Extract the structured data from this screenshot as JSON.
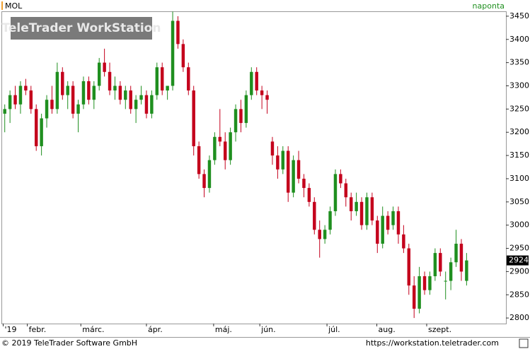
{
  "header": {
    "symbol": "MOL",
    "interval": "naponta"
  },
  "chart_data": {
    "type": "candlestick",
    "watermark": "TeleTrader WorkStation",
    "up_color": "#1f8f1f",
    "down_color": "#c4001c",
    "xlim": [
      -0.5,
      95.5
    ],
    "xticks": [
      {
        "value": -0.3,
        "label": "'19"
      },
      {
        "value": 4.3,
        "label": "febr."
      },
      {
        "value": 14.5,
        "label": "márc."
      },
      {
        "value": 27,
        "label": "ápr."
      },
      {
        "value": 39.8,
        "label": "máj."
      },
      {
        "value": 48.6,
        "label": "jún."
      },
      {
        "value": 61.4,
        "label": "júl."
      },
      {
        "value": 70.9,
        "label": "aug."
      },
      {
        "value": 80.4,
        "label": "szept."
      }
    ],
    "ylim": [
      2788,
      3459
    ],
    "yticks": [
      2800,
      2850,
      2900,
      2950,
      3000,
      3050,
      3100,
      3150,
      3200,
      3250,
      3300,
      3350,
      3400,
      3450
    ],
    "candles": [
      [
        3240,
        3260,
        3200,
        3250
      ],
      [
        3250,
        3290,
        3220,
        3280
      ],
      [
        3280,
        3300,
        3250,
        3260
      ],
      [
        3260,
        3310,
        3240,
        3300
      ],
      [
        3300,
        3315,
        3280,
        3290
      ],
      [
        3290,
        3300,
        3240,
        3250
      ],
      [
        3250,
        3260,
        3160,
        3170
      ],
      [
        3170,
        3240,
        3150,
        3230
      ],
      [
        3230,
        3280,
        3210,
        3270
      ],
      [
        3270,
        3300,
        3240,
        3250
      ],
      [
        3250,
        3350,
        3240,
        3330
      ],
      [
        3330,
        3340,
        3270,
        3280
      ],
      [
        3280,
        3310,
        3250,
        3300
      ],
      [
        3300,
        3310,
        3230,
        3240
      ],
      [
        3240,
        3270,
        3200,
        3260
      ],
      [
        3260,
        3320,
        3250,
        3310
      ],
      [
        3310,
        3320,
        3260,
        3270
      ],
      [
        3270,
        3310,
        3250,
        3300
      ],
      [
        3300,
        3360,
        3290,
        3350
      ],
      [
        3350,
        3380,
        3320,
        3330
      ],
      [
        3330,
        3350,
        3280,
        3290
      ],
      [
        3290,
        3320,
        3270,
        3300
      ],
      [
        3300,
        3310,
        3260,
        3270
      ],
      [
        3270,
        3300,
        3250,
        3290
      ],
      [
        3290,
        3300,
        3240,
        3250
      ],
      [
        3250,
        3280,
        3220,
        3270
      ],
      [
        3270,
        3300,
        3260,
        3280
      ],
      [
        3280,
        3290,
        3230,
        3240
      ],
      [
        3240,
        3290,
        3230,
        3280
      ],
      [
        3280,
        3350,
        3270,
        3340
      ],
      [
        3340,
        3350,
        3280,
        3290
      ],
      [
        3290,
        3300,
        3270,
        3300
      ],
      [
        3300,
        3460,
        3290,
        3440
      ],
      [
        3440,
        3450,
        3380,
        3390
      ],
      [
        3390,
        3400,
        3330,
        3340
      ],
      [
        3340,
        3350,
        3280,
        3290
      ],
      [
        3290,
        3300,
        3150,
        3170
      ],
      [
        3170,
        3180,
        3100,
        3110
      ],
      [
        3110,
        3120,
        3060,
        3080
      ],
      [
        3080,
        3150,
        3070,
        3140
      ],
      [
        3140,
        3200,
        3130,
        3190
      ],
      [
        3190,
        3250,
        3170,
        3180
      ],
      [
        3180,
        3200,
        3120,
        3140
      ],
      [
        3140,
        3210,
        3130,
        3200
      ],
      [
        3200,
        3260,
        3180,
        3250
      ],
      [
        3250,
        3270,
        3200,
        3220
      ],
      [
        3220,
        3290,
        3210,
        3280
      ],
      [
        3280,
        3340,
        3270,
        3330
      ],
      [
        3330,
        3340,
        3280,
        3290
      ],
      [
        3290,
        3300,
        3250,
        3280
      ],
      [
        3280,
        3290,
        3240,
        3270
      ],
      [
        3180,
        3190,
        3130,
        3150
      ],
      [
        3150,
        3170,
        3100,
        3120
      ],
      [
        3120,
        3170,
        3110,
        3160
      ],
      [
        3160,
        3170,
        3050,
        3070
      ],
      [
        3070,
        3150,
        3060,
        3140
      ],
      [
        3140,
        3160,
        3090,
        3100
      ],
      [
        3100,
        3110,
        3060,
        3080
      ],
      [
        3080,
        3090,
        3040,
        3050
      ],
      [
        3050,
        3060,
        2980,
        2990
      ],
      [
        2990,
        3010,
        2930,
        2970
      ],
      [
        2970,
        3000,
        2960,
        2990
      ],
      [
        2990,
        3040,
        2980,
        3030
      ],
      [
        3030,
        3120,
        3020,
        3110
      ],
      [
        3110,
        3120,
        3080,
        3090
      ],
      [
        3090,
        3100,
        3040,
        3060
      ],
      [
        3060,
        3070,
        3010,
        3030
      ],
      [
        3030,
        3070,
        3020,
        3050
      ],
      [
        3050,
        3060,
        2990,
        3000
      ],
      [
        3000,
        3070,
        2990,
        3060
      ],
      [
        3060,
        3070,
        3000,
        3010
      ],
      [
        3010,
        3020,
        2940,
        2960
      ],
      [
        2960,
        3040,
        2950,
        3020
      ],
      [
        3020,
        3030,
        2980,
        2990
      ],
      [
        3000,
        3040,
        2990,
        3030
      ],
      [
        3030,
        3040,
        2960,
        2980
      ],
      [
        2980,
        3000,
        2940,
        2950
      ],
      [
        2950,
        2960,
        2850,
        2870
      ],
      [
        2870,
        2890,
        2800,
        2820
      ],
      [
        2820,
        2910,
        2810,
        2890
      ],
      [
        2890,
        2900,
        2850,
        2860
      ],
      [
        2860,
        2900,
        2850,
        2890
      ],
      [
        2890,
        2950,
        2880,
        2940
      ],
      [
        2940,
        2950,
        2890,
        2900
      ],
      [
        2880,
        2900,
        2840,
        2880
      ],
      [
        2880,
        2930,
        2860,
        2920
      ],
      [
        2920,
        2990,
        2910,
        2960
      ],
      [
        2960,
        2970,
        2880,
        2900
      ],
      [
        2880,
        2940,
        2870,
        2924
      ]
    ]
  },
  "footer": {
    "copyright": "© 2019 TeleTrader Software GmbH",
    "url": "https://workstation.teletrader.com"
  }
}
